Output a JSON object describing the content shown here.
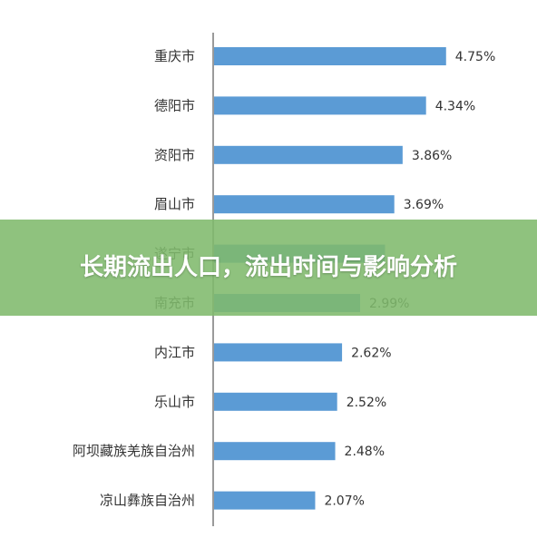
{
  "banner": {
    "title": "长期流出人口，流出时间与影响分析",
    "bg_color": "#80ba6c"
  },
  "chart_data": {
    "type": "bar",
    "orientation": "horizontal",
    "categories": [
      "重庆市",
      "德阳市",
      "资阳市",
      "眉山市",
      "遂宁市",
      "南充市",
      "内江市",
      "乐山市",
      "阿坝藏族羌族自治州",
      "凉山彝族自治州"
    ],
    "values": [
      4.75,
      4.34,
      3.86,
      3.69,
      3.5,
      2.99,
      2.62,
      2.52,
      2.48,
      2.07
    ],
    "value_labels": [
      "4.75%",
      "4.34%",
      "3.86%",
      "3.69%",
      "",
      "2.99%",
      "2.62%",
      "2.52%",
      "2.48%",
      "2.07%"
    ],
    "xlim": [
      0,
      5.2
    ],
    "bar_color": "#5b9bd5",
    "axis_color": "#9a9a9a",
    "grid": false,
    "legend": "none"
  }
}
